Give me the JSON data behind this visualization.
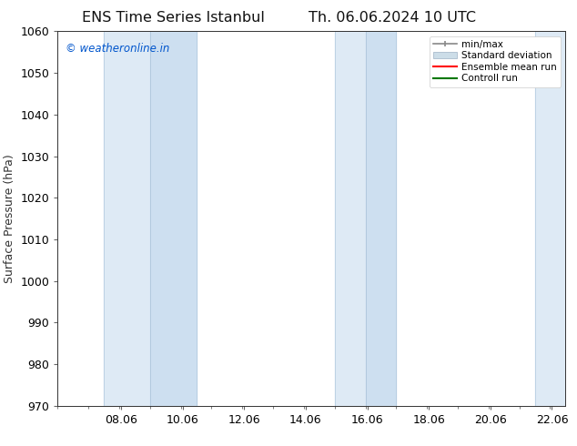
{
  "title_left": "ENS Time Series Istanbul",
  "title_right": "Th. 06.06.2024 10 UTC",
  "ylabel": "Surface Pressure (hPa)",
  "ylim": [
    970,
    1060
  ],
  "yticks": [
    970,
    980,
    990,
    1000,
    1010,
    1020,
    1030,
    1040,
    1050,
    1060
  ],
  "xlim_start": 6.0,
  "xlim_end": 22.5,
  "xticks": [
    8.06,
    10.06,
    12.06,
    14.06,
    16.06,
    18.06,
    20.06,
    22.06
  ],
  "xtick_labels": [
    "08.06",
    "10.06",
    "12.06",
    "14.06",
    "16.06",
    "18.06",
    "20.06",
    "22.06"
  ],
  "shaded_bands": [
    {
      "x_start": 7.5,
      "x_end": 9.0
    },
    {
      "x_start": 9.0,
      "x_end": 10.5
    },
    {
      "x_start": 15.0,
      "x_end": 16.0
    },
    {
      "x_start": 16.0,
      "x_end": 17.0
    },
    {
      "x_start": 21.5,
      "x_end": 22.5
    }
  ],
  "shaded_color": "#deeaf5",
  "shaded_color2": "#cddff0",
  "separator_color": "#b0c8dd",
  "watermark": "© weatheronline.in",
  "watermark_color": "#0055cc",
  "bg_color": "#ffffff",
  "axis_bg_color": "#ffffff",
  "legend_entries": [
    "min/max",
    "Standard deviation",
    "Ensemble mean run",
    "Controll run"
  ],
  "legend_colors": [
    "#aaaaaa",
    "#ccdde8",
    "#ff0000",
    "#007700"
  ],
  "title_fontsize": 11.5,
  "tick_fontsize": 9,
  "label_fontsize": 9
}
